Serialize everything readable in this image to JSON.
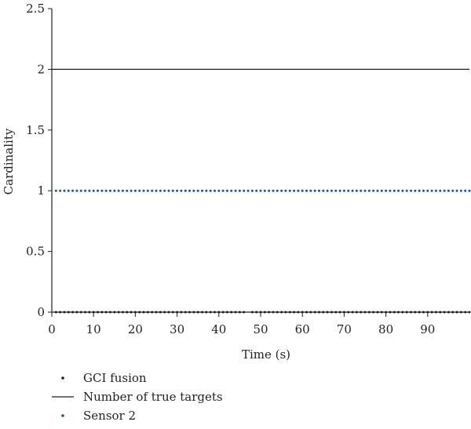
{
  "chart_data": {
    "type": "scatter",
    "xlabel": "Time (s)",
    "ylabel": "Cardinality",
    "xlim": [
      0,
      100
    ],
    "ylim": [
      0,
      2.5
    ],
    "x_ticks": [
      "0",
      "10",
      "20",
      "30",
      "40",
      "50",
      "60",
      "70",
      "80",
      "90"
    ],
    "y_ticks": [
      "0",
      "0.5",
      "1",
      "1.5",
      "2",
      "2.5"
    ],
    "grid": false,
    "legend_position": "bottom-left",
    "series": [
      {
        "name": "GCI fusion",
        "style": "dots",
        "color": "#231f20",
        "x_start": 1,
        "x_end": 100,
        "missing_x": [
          47
        ],
        "y": 0
      },
      {
        "name": "Number of true targets",
        "style": "line",
        "color": "#231f20",
        "x_start": 1,
        "x_end": 100,
        "y": 2
      },
      {
        "name": "Sensor 2",
        "style": "dots",
        "color": "#1f4e9e",
        "x_start": 1,
        "x_end": 100,
        "y": 1
      }
    ]
  }
}
